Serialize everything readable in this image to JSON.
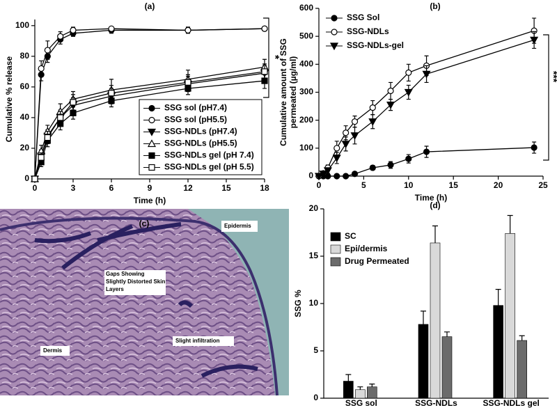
{
  "chart_data": [
    {
      "type": "line",
      "panel_label": "(a)",
      "xlabel": "Time (h)",
      "ylabel": "Cumulative % release",
      "x": [
        0,
        0.5,
        1,
        2,
        3,
        6,
        12,
        18
      ],
      "xlim": [
        0,
        18
      ],
      "xticks": [
        0,
        3,
        6,
        9,
        12,
        15,
        18
      ],
      "ylim": [
        0,
        104
      ],
      "yticks": [
        0,
        20,
        40,
        60,
        80,
        100
      ],
      "legend": "lower-right",
      "annotation": "*",
      "series": [
        {
          "name": "SSG sol (pH7.4)",
          "color": "#000000",
          "marker": "circle",
          "filled": true,
          "values": [
            0,
            68,
            80,
            91,
            95,
            97,
            97,
            98
          ],
          "errors": [
            0,
            4,
            4,
            3,
            2,
            2,
            2,
            1
          ]
        },
        {
          "name": "SSG sol (pH5.5)",
          "color": "#000000",
          "marker": "circle",
          "filled": false,
          "values": [
            0,
            72,
            84,
            93,
            97,
            98,
            97,
            98
          ],
          "errors": [
            0,
            5,
            6,
            3,
            2,
            1,
            2,
            1
          ]
        },
        {
          "name": "SSG-NDLs (pH7.4)",
          "color": "#000000",
          "marker": "triangle-down",
          "filled": true,
          "values": [
            0,
            15,
            28,
            40,
            48,
            54,
            62,
            69
          ],
          "errors": [
            0,
            4,
            4,
            5,
            5,
            5,
            5,
            5
          ]
        },
        {
          "name": "SSG-NDLs (pH5.5)",
          "color": "#000000",
          "marker": "triangle-up",
          "filled": false,
          "values": [
            0,
            18,
            31,
            44,
            52,
            58,
            65,
            73
          ],
          "errors": [
            0,
            4,
            4,
            5,
            5,
            7,
            6,
            5
          ]
        },
        {
          "name": "SSG-NDLs gel (pH 7.4)",
          "color": "#000000",
          "marker": "square",
          "filled": true,
          "values": [
            0,
            11,
            25,
            36,
            43,
            51,
            59,
            64
          ],
          "errors": [
            0,
            3,
            4,
            4,
            4,
            4,
            4,
            5
          ]
        },
        {
          "name": "SSG-NDLs gel (pH 5.5)",
          "color": "#000000",
          "marker": "square",
          "filled": false,
          "values": [
            0,
            14,
            27,
            40,
            50,
            56,
            63,
            70
          ],
          "errors": [
            0,
            3,
            4,
            4,
            5,
            5,
            5,
            5
          ]
        }
      ]
    },
    {
      "type": "line",
      "panel_label": "(b)",
      "xlabel": "Time (h)",
      "ylabel": [
        "Cumulative amount of SSG",
        "permeated (µg/ml)"
      ],
      "x": [
        0,
        0.5,
        1,
        2,
        3,
        4,
        6,
        8,
        10,
        12,
        24
      ],
      "xlim": [
        0,
        25
      ],
      "xticks": [
        0,
        5,
        10,
        15,
        20,
        25
      ],
      "ylim": [
        0,
        600
      ],
      "yticks": [
        0,
        100,
        200,
        300,
        400,
        500,
        600
      ],
      "legend": "upper-left",
      "annotation": "***",
      "series": [
        {
          "name": "SSG Sol",
          "color": "#000000",
          "marker": "circle",
          "filled": true,
          "values": [
            0,
            0,
            0,
            0,
            0,
            8,
            30,
            40,
            62,
            87,
            102
          ],
          "errors": [
            0,
            0,
            0,
            0,
            0,
            3,
            8,
            12,
            15,
            20,
            20
          ]
        },
        {
          "name": "SSG-NDLs",
          "color": "#000000",
          "marker": "circle",
          "filled": false,
          "values": [
            0,
            10,
            30,
            100,
            155,
            195,
            245,
            305,
            370,
            395,
            520
          ],
          "errors": [
            0,
            5,
            10,
            25,
            25,
            20,
            25,
            30,
            30,
            35,
            45
          ]
        },
        {
          "name": "SSG-NDLs-gel",
          "color": "#000000",
          "marker": "triangle-down",
          "filled": true,
          "values": [
            0,
            8,
            20,
            65,
            115,
            145,
            195,
            255,
            300,
            365,
            487
          ],
          "errors": [
            0,
            5,
            10,
            20,
            25,
            30,
            25,
            20,
            25,
            30,
            30
          ]
        }
      ]
    },
    {
      "type": "bar",
      "panel_label": "(d)",
      "ylabel": "SSG %",
      "categories": [
        "SSG sol",
        "SSG-NDLs",
        "SSG-NDLs gel"
      ],
      "ylim": [
        0,
        20
      ],
      "yticks": [
        0,
        5,
        10,
        15,
        20
      ],
      "legend": "upper-left",
      "series": [
        {
          "name": "SC",
          "color": "#000000",
          "values": [
            1.8,
            7.8,
            9.8
          ],
          "errors": [
            0.7,
            1.4,
            1.7
          ]
        },
        {
          "name": "Epi/dermis",
          "color": "#d9d9d9",
          "values": [
            0.9,
            16.4,
            17.4
          ],
          "errors": [
            0.3,
            1.8,
            1.9
          ]
        },
        {
          "name": "Drug Permeated",
          "color": "#6b6b6b",
          "values": [
            1.2,
            6.5,
            6.1
          ],
          "errors": [
            0.3,
            0.5,
            0.5
          ]
        }
      ]
    }
  ],
  "histology": {
    "panel_label": "(c)",
    "annotations": [
      "Epidermis",
      "Gaps Showing Slightly Distorted Skin Layers",
      "Dermis",
      "Slight infiltration"
    ]
  }
}
